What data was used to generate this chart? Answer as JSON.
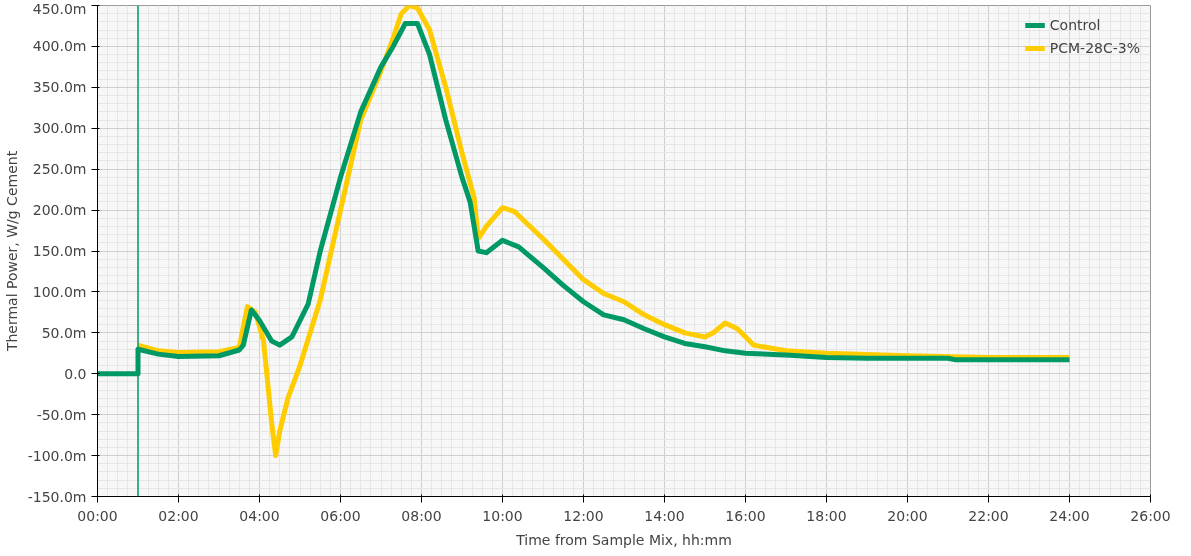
{
  "chart_data": {
    "type": "line",
    "xlabel": "Time from Sample Mix, hh:mm",
    "ylabel": "Thermal Power, W/g Cement",
    "xlim": [
      0,
      26
    ],
    "ylim": [
      -150,
      450
    ],
    "xticks": [
      {
        "value": 0,
        "label": "00:00"
      },
      {
        "value": 2,
        "label": "02:00"
      },
      {
        "value": 4,
        "label": "04:00"
      },
      {
        "value": 6,
        "label": "06:00"
      },
      {
        "value": 8,
        "label": "08:00"
      },
      {
        "value": 10,
        "label": "10:00"
      },
      {
        "value": 12,
        "label": "12:00"
      },
      {
        "value": 14,
        "label": "14:00"
      },
      {
        "value": 16,
        "label": "16:00"
      },
      {
        "value": 18,
        "label": "18:00"
      },
      {
        "value": 20,
        "label": "20:00"
      },
      {
        "value": 22,
        "label": "22:00"
      },
      {
        "value": 24,
        "label": "24:00"
      },
      {
        "value": 26,
        "label": "26:00"
      }
    ],
    "yticks": [
      {
        "value": -150,
        "label": "-150.0m"
      },
      {
        "value": -100,
        "label": "-100.0m"
      },
      {
        "value": -50,
        "label": "-50.0m"
      },
      {
        "value": 0,
        "label": "0.0"
      },
      {
        "value": 50,
        "label": "50.0m"
      },
      {
        "value": 100,
        "label": "100.0m"
      },
      {
        "value": 150,
        "label": "150.0m"
      },
      {
        "value": 200,
        "label": "200.0m"
      },
      {
        "value": 250,
        "label": "250.0m"
      },
      {
        "value": 300,
        "label": "300.0m"
      },
      {
        "value": 350,
        "label": "350.0m"
      },
      {
        "value": 400,
        "label": "400.0m"
      },
      {
        "value": 450,
        "label": "450.0m"
      }
    ],
    "grid": true,
    "legend": "top right",
    "marker": "none",
    "line_style": "solid",
    "ref_lines": [
      {
        "axis": "x",
        "value": 1,
        "label": null,
        "color": "#009966"
      }
    ],
    "series": [
      {
        "name": "Control",
        "color": "#009966",
        "x": [
          0,
          1,
          1,
          1.5,
          2,
          3,
          3.5,
          3.6,
          3.8,
          4.0,
          4.3,
          4.5,
          4.8,
          5.2,
          5.5,
          6,
          6.5,
          7,
          7.3,
          7.6,
          7.9,
          8.2,
          8.6,
          9,
          9.2,
          9.3,
          9.4,
          9.6,
          10,
          10.4,
          11,
          11.5,
          12,
          12.5,
          13,
          13.5,
          14,
          14.5,
          15,
          15.5,
          16,
          17,
          18,
          19,
          21,
          21.2,
          24
        ],
        "values": [
          0,
          0,
          30,
          24,
          21,
          22,
          29,
          35,
          78,
          65,
          40,
          35,
          45,
          85,
          150,
          240,
          320,
          375,
          400,
          428,
          428,
          390,
          310,
          240,
          210,
          180,
          150,
          148,
          163,
          155,
          130,
          108,
          88,
          72,
          66,
          55,
          45,
          37,
          33,
          28,
          25,
          23,
          20,
          19,
          19,
          17,
          17
        ]
      },
      {
        "name": "PCM-28C-3%",
        "color": "#ffcc00",
        "x": [
          1,
          1.5,
          2,
          3,
          3.5,
          3.7,
          3.9,
          4.1,
          4.3,
          4.4,
          4.5,
          4.7,
          5,
          5.5,
          6,
          6.5,
          7,
          7.3,
          7.5,
          7.7,
          7.9,
          8.2,
          8.6,
          9,
          9.3,
          9.4,
          9.6,
          10,
          10.3,
          11,
          11.5,
          12,
          12.5,
          12.8,
          13,
          13.5,
          14,
          14.5,
          15,
          15.2,
          15.5,
          15.8,
          16.2,
          17,
          18,
          20,
          22,
          24
        ],
        "values": [
          35,
          28,
          26,
          27,
          32,
          82,
          75,
          40,
          -60,
          -100,
          -70,
          -30,
          10,
          90,
          200,
          310,
          370,
          410,
          440,
          450,
          447,
          420,
          350,
          270,
          215,
          165,
          180,
          203,
          198,
          165,
          140,
          115,
          98,
          92,
          88,
          72,
          60,
          50,
          45,
          50,
          62,
          55,
          35,
          28,
          25,
          22,
          20,
          20
        ]
      }
    ]
  }
}
